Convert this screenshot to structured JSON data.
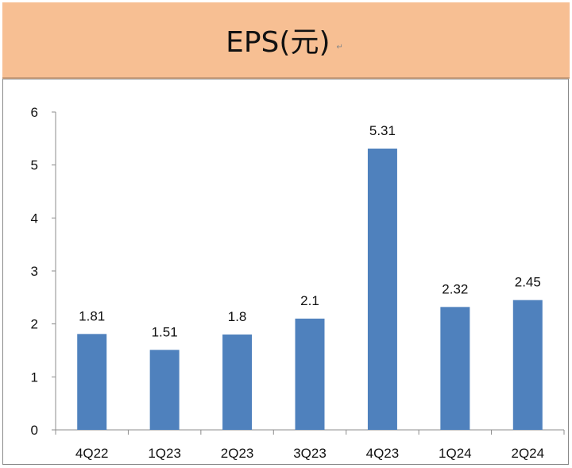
{
  "header": {
    "title": "EPS(元)",
    "para_mark": "↵"
  },
  "colors": {
    "header_bg": "#f7bf93",
    "bar": "#4f81bd"
  },
  "chart_data": {
    "type": "bar",
    "title": "EPS(元)",
    "categories": [
      "4Q22",
      "1Q23",
      "2Q23",
      "3Q23",
      "4Q23",
      "1Q24",
      "2Q24"
    ],
    "series": [
      {
        "values": [
          1.81,
          1.51,
          1.8,
          2.1,
          5.31,
          2.32,
          2.45
        ]
      }
    ],
    "data_labels": [
      "1.81",
      "1.51",
      "1.8",
      "2.1",
      "5.31",
      "2.32",
      "2.45"
    ],
    "ylim": [
      0,
      6
    ],
    "yticks": [
      0,
      1,
      2,
      3,
      4,
      5,
      6
    ],
    "xlabel": "",
    "ylabel": "",
    "grid": false,
    "legend": "none"
  }
}
